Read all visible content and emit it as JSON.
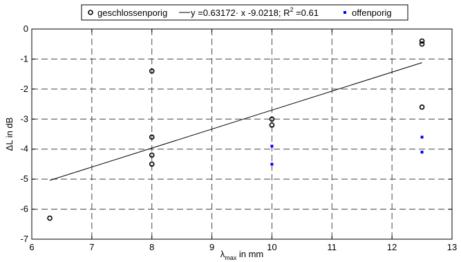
{
  "chart_data": {
    "type": "scatter",
    "xlabel_main": "λ",
    "xlabel_sub": "max",
    "xlabel_rest": " in mm",
    "ylabel": "ΔL in dB",
    "xlim": [
      6,
      13
    ],
    "ylim": [
      -7,
      0
    ],
    "xticks": [
      "6",
      "7",
      "8",
      "9",
      "10",
      "11",
      "12",
      "13"
    ],
    "yticks": [
      "0",
      "-1",
      "-2",
      "-3",
      "-4",
      "-5",
      "-6",
      "-7"
    ],
    "grid": true,
    "legend_position": "top",
    "series": [
      {
        "name": "geschlossenporig",
        "marker": "circle",
        "color": "#000000",
        "points": [
          [
            6.3,
            -6.3
          ],
          [
            8,
            -1.4
          ],
          [
            8,
            -3.6
          ],
          [
            8,
            -4.2
          ],
          [
            8,
            -4.5
          ],
          [
            10,
            -3.0
          ],
          [
            10,
            -3.2
          ],
          [
            12.5,
            -0.4
          ],
          [
            12.5,
            -0.5
          ],
          [
            12.5,
            -2.6
          ]
        ]
      },
      {
        "name": "fit",
        "marker": "line",
        "color": "#000000",
        "points": [
          [
            6.3,
            -5.04
          ],
          [
            12.5,
            -1.12
          ]
        ]
      },
      {
        "name": "offenporig",
        "marker": "square",
        "color": "#0000ff",
        "points": [
          [
            10,
            -3.9
          ],
          [
            10,
            -4.5
          ],
          [
            12.5,
            -3.6
          ],
          [
            12.5,
            -4.1
          ]
        ]
      }
    ],
    "legend": {
      "circle_label": "geschlossenporig",
      "fit_prefix": "y =0.63172· x -9.0218; R",
      "fit_sup": "2",
      "fit_suffix": " =0.61",
      "square_label": "offenporig"
    }
  }
}
